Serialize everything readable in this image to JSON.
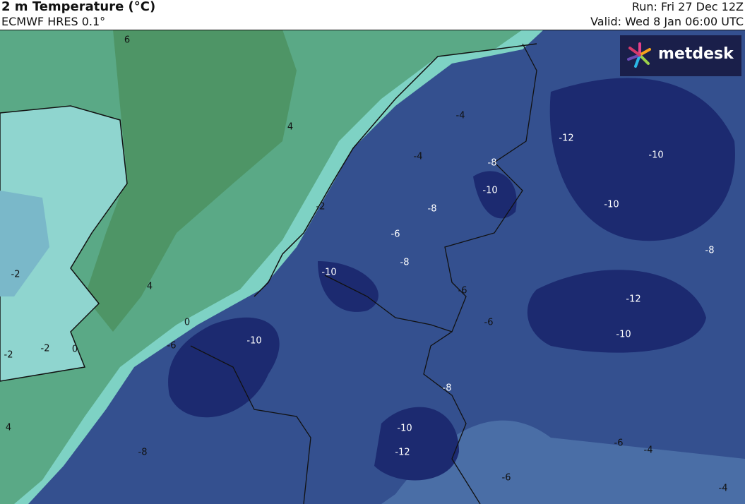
{
  "header": {
    "title": "2 m Temperature (°C)",
    "subtitle": "ECMWF HRES 0.1°",
    "run": "Run: Fri 27 Dec 12Z",
    "valid": "Valid: Wed 8 Jan 06:00 UTC"
  },
  "logo": {
    "text": "metdesk"
  },
  "map": {
    "labels": [
      6,
      4,
      4,
      -2,
      -2,
      -2,
      0,
      0,
      -6,
      -10,
      -8,
      4,
      -2,
      -4,
      -4,
      -8,
      -10,
      -8,
      -6,
      -10,
      -8,
      -6,
      -6,
      -12,
      -10,
      -10,
      -8,
      -12,
      -10,
      -8,
      -10,
      -12,
      -6,
      -4,
      -6,
      -4
    ]
  }
}
